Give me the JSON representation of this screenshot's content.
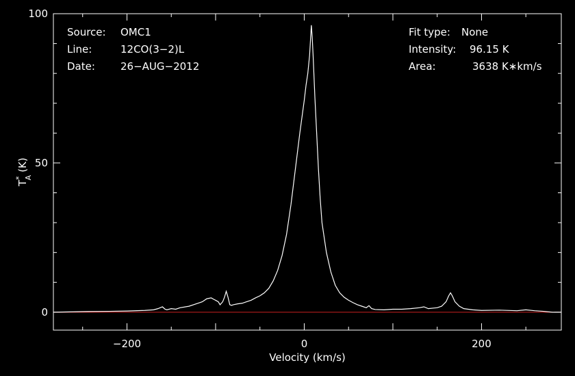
{
  "chart_data": {
    "type": "line",
    "xlabel": "Velocity (km/s)",
    "ylabel_main": "T",
    "ylabel_sup": "*",
    "ylabel_sub": "A",
    "ylabel_unit": "(K)",
    "xlim": [
      -283,
      290
    ],
    "ylim": [
      -6,
      100
    ],
    "xticks": [
      {
        "value": -200,
        "label": "−200"
      },
      {
        "value": 0,
        "label": "0"
      },
      {
        "value": 200,
        "label": "200"
      }
    ],
    "yticks": [
      {
        "value": 0,
        "label": "0"
      },
      {
        "value": 50,
        "label": "50"
      },
      {
        "value": 100,
        "label": "100"
      }
    ],
    "grid": false,
    "baseline": {
      "y": 0,
      "color": "#cc2222"
    },
    "line_color": "#ffffff",
    "series": [
      {
        "x": [
          -283,
          -250,
          -220,
          -200,
          -180,
          -170,
          -165,
          -160,
          -157,
          -155,
          -150,
          -145,
          -140,
          -130,
          -120,
          -115,
          -110,
          -105,
          -102,
          -100,
          -97,
          -95,
          -92,
          -90,
          -88,
          -86,
          -84,
          -82,
          -80,
          -75,
          -70,
          -65,
          -60,
          -55,
          -50,
          -45,
          -40,
          -35,
          -30,
          -25,
          -20,
          -15,
          -10,
          -5,
          0,
          2,
          4,
          6,
          7,
          8,
          9,
          10,
          12,
          14,
          16,
          18,
          20,
          25,
          30,
          35,
          40,
          45,
          50,
          55,
          60,
          65,
          70,
          73,
          76,
          80,
          90,
          100,
          110,
          120,
          130,
          135,
          140,
          150,
          155,
          160,
          163,
          165,
          167,
          170,
          175,
          180,
          190,
          200,
          220,
          240,
          250,
          260,
          270,
          280,
          290
        ],
        "y": [
          0,
          0.2,
          0.3,
          0.4,
          0.6,
          0.8,
          1.2,
          1.8,
          1.0,
          0.8,
          1.2,
          1.0,
          1.5,
          2.0,
          3.0,
          3.5,
          4.5,
          4.8,
          4.3,
          4.0,
          3.5,
          2.5,
          3.5,
          5.0,
          7.0,
          5.0,
          2.5,
          2.3,
          2.5,
          2.8,
          3.0,
          3.5,
          4.0,
          4.8,
          5.5,
          6.5,
          8.0,
          10.5,
          14.0,
          19.0,
          26.0,
          36.0,
          48.0,
          60.0,
          71.0,
          76.0,
          80.0,
          86.0,
          91.0,
          96.15,
          92.0,
          86.0,
          72.0,
          60.0,
          48.0,
          38.0,
          30.0,
          20.0,
          13.5,
          9.0,
          6.5,
          5.0,
          4.0,
          3.2,
          2.5,
          2.0,
          1.5,
          2.2,
          1.2,
          0.9,
          0.8,
          1.0,
          1.0,
          1.2,
          1.5,
          1.8,
          1.2,
          1.5,
          2.0,
          3.5,
          5.5,
          6.5,
          5.5,
          3.5,
          2.0,
          1.2,
          0.8,
          0.6,
          0.7,
          0.5,
          0.8,
          0.5,
          0.3,
          0,
          0
        ]
      }
    ]
  },
  "info_left": [
    {
      "label": "Source:",
      "value": "OMC1"
    },
    {
      "label": "Line:",
      "value": "12CO(3−2)L"
    },
    {
      "label": "Date:",
      "value": "26−AUG−2012"
    }
  ],
  "info_right": [
    {
      "label": "Fit type:",
      "value": "None"
    },
    {
      "label": "Intensity:",
      "value": "96.15 K"
    },
    {
      "label": "Area:",
      "value": "3638 K∗km/s"
    }
  ]
}
